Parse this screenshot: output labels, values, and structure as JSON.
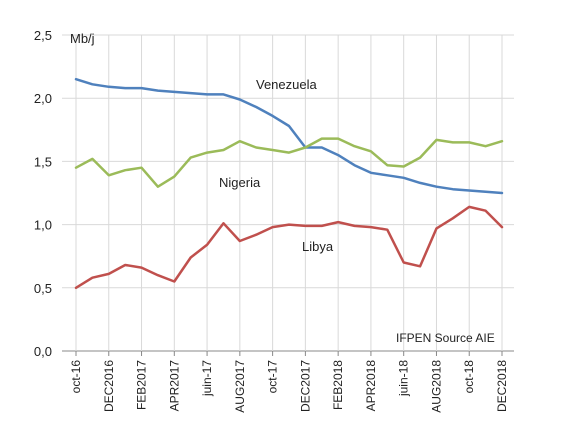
{
  "chart_data": {
    "type": "line",
    "unit_label": "Mb/j",
    "source_note": "IFPEN Source AIE",
    "ylim": [
      0,
      2.5
    ],
    "y_ticks": [
      "0,0",
      "0,5",
      "1,0",
      "1,5",
      "2,0",
      "2,5"
    ],
    "y_tick_values": [
      0,
      0.5,
      1.0,
      1.5,
      2.0,
      2.5
    ],
    "grid": true,
    "x": [
      "oct-16",
      "nov-16",
      "DEC2016",
      "jan-17",
      "FEB2017",
      "mar-17",
      "APR2017",
      "may-17",
      "juin-17",
      "jul-17",
      "AUG2017",
      "sep-17",
      "oct-17",
      "nov-17",
      "DEC2017",
      "jan-18",
      "FEB2018",
      "mar-18",
      "APR2018",
      "may-18",
      "juin-18",
      "jul-18",
      "AUG2018",
      "sep-18",
      "oct-18",
      "nov-18",
      "DEC2018"
    ],
    "x_tick_labels": [
      "oct-16",
      "DEC2016",
      "FEB2017",
      "APR2017",
      "juin-17",
      "AUG2017",
      "oct-17",
      "DEC2017",
      "FEB2018",
      "APR2018",
      "juin-18",
      "AUG2018",
      "oct-18",
      "DEC2018"
    ],
    "series": [
      {
        "name": "Venezuela",
        "color": "#4f81bd",
        "values": [
          2.15,
          2.11,
          2.09,
          2.08,
          2.08,
          2.06,
          2.05,
          2.04,
          2.03,
          2.03,
          1.99,
          1.93,
          1.86,
          1.78,
          1.61,
          1.61,
          1.55,
          1.47,
          1.41,
          1.39,
          1.37,
          1.33,
          1.3,
          1.28,
          1.27,
          1.26,
          1.25
        ]
      },
      {
        "name": "Nigeria",
        "color": "#9bbb59",
        "values": [
          1.45,
          1.52,
          1.39,
          1.43,
          1.45,
          1.3,
          1.38,
          1.53,
          1.57,
          1.59,
          1.66,
          1.61,
          1.59,
          1.57,
          1.61,
          1.68,
          1.68,
          1.62,
          1.58,
          1.47,
          1.46,
          1.53,
          1.67,
          1.65,
          1.65,
          1.62,
          1.66
        ]
      },
      {
        "name": "Libya",
        "color": "#c0504d",
        "values": [
          0.5,
          0.58,
          0.61,
          0.68,
          0.66,
          0.6,
          0.55,
          0.74,
          0.84,
          1.01,
          0.87,
          0.92,
          0.98,
          1.0,
          0.99,
          0.99,
          1.02,
          0.99,
          0.98,
          0.96,
          0.7,
          0.67,
          0.97,
          1.05,
          1.14,
          1.11,
          0.98
        ]
      }
    ]
  }
}
